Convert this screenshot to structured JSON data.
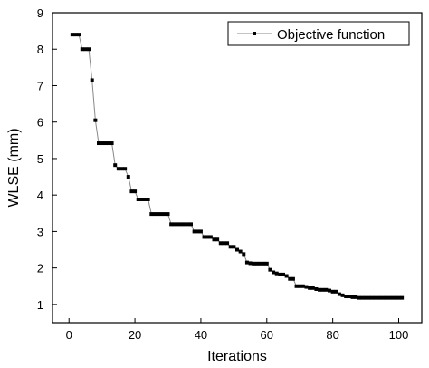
{
  "chart_data": {
    "type": "line",
    "xlabel": "Iterations",
    "ylabel": "WLSE (mm)",
    "xlim": [
      -5,
      107
    ],
    "ylim": [
      0.5,
      9
    ],
    "xticks": [
      0,
      20,
      40,
      60,
      80,
      100
    ],
    "yticks": [
      1,
      2,
      3,
      4,
      5,
      6,
      7,
      8,
      9
    ],
    "legend_position": "top-right",
    "grid": false,
    "line_color": "#888888",
    "marker_color": "#000000",
    "series": [
      {
        "name": "Objective function",
        "x": [
          1,
          2,
          3,
          4,
          5,
          6,
          7,
          8,
          9,
          10,
          11,
          12,
          13,
          14,
          15,
          16,
          17,
          18,
          19,
          20,
          21,
          22,
          23,
          24,
          25,
          26,
          27,
          28,
          29,
          30,
          31,
          32,
          33,
          34,
          35,
          36,
          37,
          38,
          39,
          40,
          41,
          42,
          43,
          44,
          45,
          46,
          47,
          48,
          49,
          50,
          51,
          52,
          53,
          54,
          55,
          56,
          57,
          58,
          59,
          60,
          61,
          62,
          63,
          64,
          65,
          66,
          67,
          68,
          69,
          70,
          71,
          72,
          73,
          74,
          75,
          76,
          77,
          78,
          79,
          80,
          81,
          82,
          83,
          84,
          85,
          86,
          87,
          88,
          89,
          90,
          91,
          92,
          93,
          94,
          95,
          96,
          97,
          98,
          99,
          100,
          101
        ],
        "values": [
          8.4,
          8.4,
          8.4,
          8.0,
          8.0,
          8.0,
          7.15,
          6.05,
          5.42,
          5.42,
          5.42,
          5.42,
          5.42,
          4.82,
          4.72,
          4.72,
          4.72,
          4.5,
          4.1,
          4.1,
          3.88,
          3.88,
          3.88,
          3.88,
          3.48,
          3.48,
          3.48,
          3.48,
          3.48,
          3.48,
          3.2,
          3.2,
          3.2,
          3.2,
          3.2,
          3.2,
          3.2,
          3.0,
          3.0,
          3.0,
          2.85,
          2.85,
          2.85,
          2.78,
          2.78,
          2.68,
          2.68,
          2.68,
          2.58,
          2.58,
          2.5,
          2.45,
          2.38,
          2.15,
          2.13,
          2.12,
          2.12,
          2.12,
          2.12,
          2.12,
          1.95,
          1.88,
          1.85,
          1.82,
          1.82,
          1.78,
          1.7,
          1.7,
          1.5,
          1.5,
          1.5,
          1.48,
          1.45,
          1.45,
          1.42,
          1.4,
          1.4,
          1.4,
          1.38,
          1.35,
          1.35,
          1.28,
          1.25,
          1.22,
          1.22,
          1.2,
          1.2,
          1.18,
          1.18,
          1.18,
          1.18,
          1.18,
          1.18,
          1.18,
          1.18,
          1.18,
          1.18,
          1.18,
          1.18,
          1.18,
          1.18
        ]
      }
    ]
  }
}
